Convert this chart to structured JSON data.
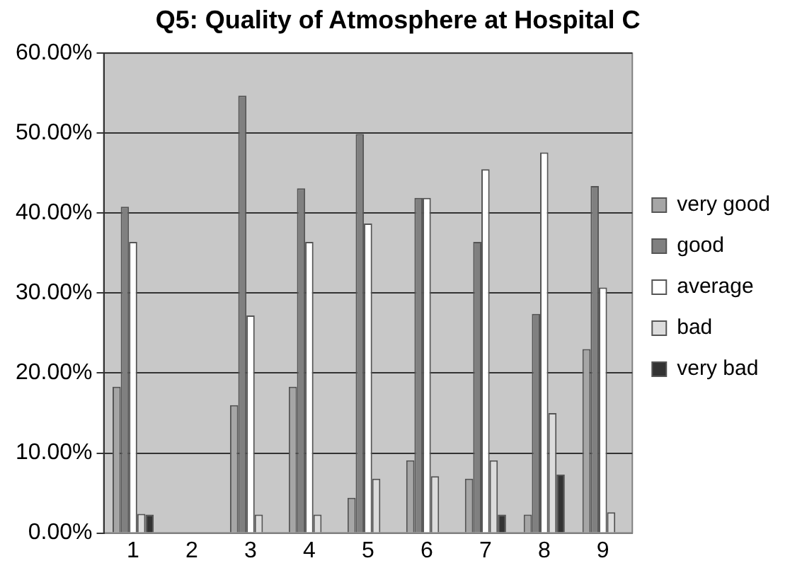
{
  "chart_data": {
    "type": "bar",
    "title": "Q5: Quality of Atmosphere at Hospital C",
    "categories": [
      "1",
      "2",
      "3",
      "4",
      "5",
      "6",
      "7",
      "8",
      "9"
    ],
    "series": [
      {
        "name": "very good",
        "color": "#a6a6a6",
        "values": [
          18.3,
          0,
          16.0,
          18.3,
          4.4,
          9.1,
          6.8,
          2.3,
          23.0
        ]
      },
      {
        "name": "good",
        "color": "#808080",
        "values": [
          40.8,
          0,
          54.7,
          43.1,
          49.9,
          41.9,
          36.4,
          27.4,
          43.4
        ]
      },
      {
        "name": "average",
        "color": "#ffffff",
        "values": [
          36.4,
          0,
          27.2,
          36.4,
          38.7,
          41.9,
          45.5,
          47.6,
          30.7
        ]
      },
      {
        "name": "bad",
        "color": "#dcdcdc",
        "values": [
          2.4,
          0,
          2.3,
          2.3,
          6.8,
          7.1,
          9.1,
          15.0,
          2.6
        ]
      },
      {
        "name": "very bad",
        "color": "#333333",
        "values": [
          2.3,
          0,
          0,
          0,
          0,
          0,
          2.3,
          7.3,
          0
        ]
      }
    ],
    "ylim": [
      0,
      60
    ],
    "yticks": [
      {
        "value": 0,
        "label": "0.00%"
      },
      {
        "value": 10,
        "label": "10.00%"
      },
      {
        "value": 20,
        "label": "20.00%"
      },
      {
        "value": 30,
        "label": "30.00%"
      },
      {
        "value": 40,
        "label": "40.00%"
      },
      {
        "value": 50,
        "label": "50.00%"
      },
      {
        "value": 60,
        "label": "60.00%"
      }
    ],
    "grid": "y",
    "legend": "right"
  }
}
